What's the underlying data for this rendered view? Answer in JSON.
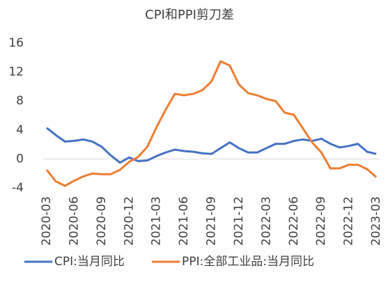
{
  "chart_data": {
    "type": "line",
    "title": "CPI和PPI剪刀差",
    "categories": [
      "2020-03",
      null,
      null,
      "2020-06",
      null,
      null,
      "2020-09",
      null,
      null,
      "2020-12",
      null,
      null,
      "2021-03",
      null,
      null,
      "2021-06",
      null,
      null,
      "2021-09",
      null,
      null,
      "2021-12",
      null,
      null,
      "2022-03",
      null,
      null,
      "2022-06",
      null,
      null,
      "2022-09",
      null,
      null,
      "2022-12",
      null,
      null,
      "2023-03"
    ],
    "series": [
      {
        "name": "CPI:当月同比",
        "color": "#4472c4",
        "values": [
          4.3,
          3.3,
          2.4,
          2.5,
          2.7,
          2.4,
          1.7,
          0.5,
          -0.5,
          0.2,
          -0.3,
          -0.2,
          0.4,
          0.9,
          1.3,
          1.1,
          1.0,
          0.8,
          0.7,
          1.5,
          2.3,
          1.5,
          0.9,
          0.9,
          1.5,
          2.1,
          2.1,
          2.5,
          2.7,
          2.5,
          2.8,
          2.1,
          1.6,
          1.8,
          2.1,
          1.0,
          0.7
        ]
      },
      {
        "name": "PPI:全部工业品:当月同比",
        "color": "#ed7d31",
        "values": [
          -1.5,
          -3.1,
          -3.7,
          -3.0,
          -2.4,
          -2.0,
          -2.1,
          -2.1,
          -1.5,
          -0.4,
          0.3,
          1.7,
          4.4,
          6.8,
          9.0,
          8.8,
          9.0,
          9.5,
          10.7,
          13.5,
          12.9,
          10.3,
          9.1,
          8.8,
          8.3,
          8.0,
          6.4,
          6.1,
          4.2,
          2.3,
          0.9,
          -1.3,
          -1.3,
          -0.8,
          -0.8,
          -1.4,
          -2.5
        ]
      }
    ],
    "ylim": [
      -4,
      16
    ],
    "yticks": [
      -4,
      0,
      4,
      8,
      12,
      16
    ],
    "grid": false
  }
}
